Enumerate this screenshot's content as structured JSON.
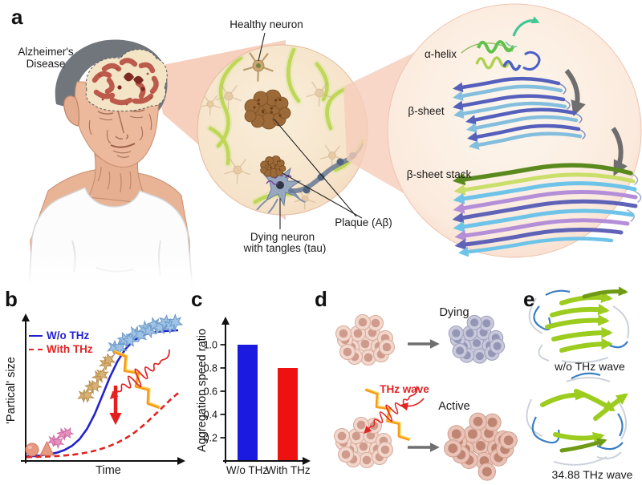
{
  "panels": {
    "a": "a",
    "b": "b",
    "c": "c",
    "d": "d",
    "e": "e"
  },
  "panel_a": {
    "disease_label_line1": "Alzheimer's",
    "disease_label_line2": "Disease",
    "healthy_neuron_label": "Healthy neuron",
    "plaque_label": "Plaque (Aβ)",
    "dying_neuron_label_line1": "Dying neuron",
    "dying_neuron_label_line2": "with tangles (tau)",
    "alpha_helix_label": "α-helix",
    "beta_sheet_label": "β-sheet",
    "beta_sheet_stack_label": "β-sheet stack"
  },
  "chart_data": [
    {
      "id": "particle-size-vs-time",
      "type": "line",
      "xlabel": "Time",
      "ylabel": "'Partical' size",
      "xlim": [
        0,
        1
      ],
      "ylim": [
        0,
        1.05
      ],
      "grid": false,
      "legend_position": "top-left",
      "legend": [
        {
          "label": "W/o THz",
          "color": "#2323cd",
          "style": "solid"
        },
        {
          "label": "With THz",
          "color": "#e32222",
          "style": "dashed"
        }
      ],
      "x": [
        0,
        0.05,
        0.1,
        0.15,
        0.2,
        0.25,
        0.3,
        0.35,
        0.4,
        0.45,
        0.5,
        0.55,
        0.6,
        0.65,
        0.7,
        0.75,
        0.8,
        0.85,
        0.9,
        0.95,
        1
      ],
      "series": [
        {
          "name": "W/o THz",
          "values": [
            0.01,
            0.013,
            0.018,
            0.026,
            0.038,
            0.058,
            0.09,
            0.14,
            0.22,
            0.33,
            0.47,
            0.61,
            0.73,
            0.82,
            0.88,
            0.92,
            0.94,
            0.952,
            0.958,
            0.962,
            0.965
          ]
        },
        {
          "name": "With THz",
          "values": [
            0.005,
            0.006,
            0.008,
            0.01,
            0.013,
            0.017,
            0.022,
            0.03,
            0.04,
            0.053,
            0.07,
            0.09,
            0.115,
            0.145,
            0.18,
            0.225,
            0.275,
            0.33,
            0.385,
            0.44,
            0.49
          ]
        }
      ],
      "annotation": "red arrow: THz irradiation suppresses aggregate growth"
    },
    {
      "id": "aggregation-speed-ratio",
      "type": "bar",
      "ylabel": "Aggregation speed ratio",
      "categories": [
        "W/o THz",
        "With THz"
      ],
      "values": [
        1.0,
        0.8
      ],
      "colors": [
        "#1a1ae0",
        "#ee1111"
      ],
      "yticks": [
        0.2,
        0.4,
        0.6,
        0.8,
        1.0
      ],
      "ylim": [
        0,
        1.15
      ]
    }
  ],
  "panel_d": {
    "dying_label": "Dying",
    "active_label": "Active",
    "thz_wave_label": "THz wave"
  },
  "panel_e": {
    "top_label": "w/o THz wave",
    "bottom_label": "34.88 THz wave"
  },
  "colors": {
    "wo_thz_blue": "#1a1ae0",
    "with_thz_red": "#ee1111",
    "thz_pulse_orange": "#f59a1a",
    "plaque_brown": "#9c6a38",
    "healthy_fiber_green": "#b8d347"
  }
}
